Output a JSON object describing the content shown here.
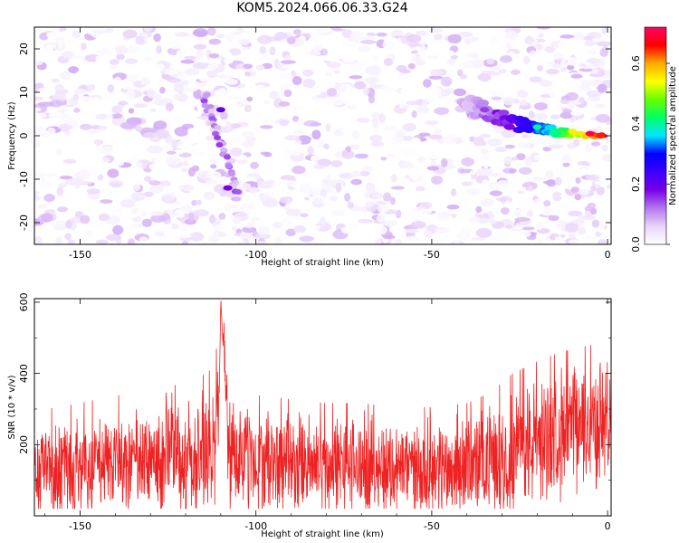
{
  "figure": {
    "title": "KOM5.2024.066.06.33.G24"
  },
  "chart_data": [
    {
      "type": "heatmap",
      "xlabel": "Height of straight line (km)",
      "ylabel": "Frequency (Hz)",
      "xlim": [
        -163,
        1
      ],
      "ylim": [
        -25,
        25
      ],
      "xticks": [
        -150,
        -100,
        -50,
        0
      ],
      "yticks": [
        -20,
        -10,
        0,
        10,
        20
      ],
      "colorbar": {
        "label": "Normalized spectral amplitude",
        "range": [
          0,
          0.72
        ],
        "ticks": [
          0.0,
          0.2,
          0.4,
          0.6
        ],
        "colormap": [
          "#ffffff",
          "#e9d4f9",
          "#b277ef",
          "#7a00e6",
          "#3b00ff",
          "#0000ff",
          "#00e6ff",
          "#00ff66",
          "#66ff00",
          "#ffff00",
          "#ffaa00",
          "#ff0000",
          "#ff0066"
        ]
      },
      "notable_features": [
        {
          "x": -110,
          "y": 6,
          "value": 0.2
        },
        {
          "x": -108,
          "y": -12,
          "value": 0.18
        },
        {
          "x": -35,
          "y": 6,
          "value": 0.15
        },
        {
          "x": -25,
          "y": 4,
          "value": 0.25
        },
        {
          "x": -20,
          "y": 2,
          "value": 0.4
        },
        {
          "x": -10,
          "y": 1,
          "value": 0.55
        },
        {
          "x": -5,
          "y": 0.5,
          "value": 0.7
        },
        {
          "x": -2,
          "y": 0,
          "value": 0.65
        }
      ]
    },
    {
      "type": "line",
      "xlabel": "Height of straight line (km)",
      "ylabel": "SNR (10 * v/v)",
      "xlim": [
        -163,
        1
      ],
      "ylim": [
        0,
        610
      ],
      "xticks": [
        -150,
        -100,
        -50,
        0
      ],
      "yticks": [
        200,
        400,
        600
      ],
      "series": [
        {
          "color": "#ee2222",
          "x": [
            -163,
            -150,
            -140,
            -130,
            -125,
            -120,
            -115,
            -112,
            -110.5,
            -110,
            -108,
            -105,
            -100,
            -90,
            -80,
            -70,
            -60,
            -50,
            -40,
            -35,
            -30,
            -25,
            -20,
            -15,
            -10,
            -5,
            0,
            1
          ],
          "y": [
            130,
            140,
            150,
            150,
            180,
            160,
            175,
            190,
            300,
            610,
            200,
            170,
            150,
            145,
            140,
            140,
            135,
            135,
            140,
            150,
            165,
            185,
            210,
            230,
            245,
            255,
            265,
            260
          ]
        }
      ]
    }
  ]
}
